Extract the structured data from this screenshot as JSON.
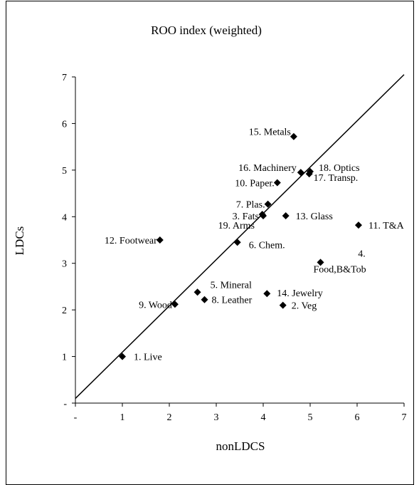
{
  "chart_data": {
    "type": "scatter",
    "title": "ROO index (weighted)",
    "xlabel": "nonLDCS",
    "ylabel": "LDCs",
    "xlim": [
      0,
      7
    ],
    "ylim": [
      0,
      7
    ],
    "x_tick_labels": [
      "-",
      "1",
      "2",
      "3",
      "4",
      "5",
      "6",
      "7"
    ],
    "y_tick_labels": [
      "-",
      "1",
      "2",
      "3",
      "4",
      "5",
      "6",
      "7"
    ],
    "grid": false,
    "legend": "none",
    "reference_line": {
      "from": [
        0,
        0.1
      ],
      "to": [
        7,
        7.05
      ]
    },
    "marker_color": "#000000",
    "points": [
      {
        "label": "1. Live",
        "x": 1.0,
        "y": 1.0
      },
      {
        "label": "2. Veg",
        "x": 4.42,
        "y": 2.1
      },
      {
        "label": "3. Fats",
        "x": 4.0,
        "y": 4.02
      },
      {
        "label": "4.\nFood,B&Tob",
        "x": 5.22,
        "y": 3.02
      },
      {
        "label": "5. Mineral",
        "x": 2.6,
        "y": 2.38
      },
      {
        "label": "6. Chem.",
        "x": 3.45,
        "y": 3.45
      },
      {
        "label": "7. Plas.",
        "x": 4.1,
        "y": 4.27
      },
      {
        "label": "8. Leather",
        "x": 2.75,
        "y": 2.22
      },
      {
        "label": "9. Wood",
        "x": 2.12,
        "y": 2.12
      },
      {
        "label": "10. Paper.",
        "x": 4.3,
        "y": 4.73
      },
      {
        "label": "11. T&A",
        "x": 6.03,
        "y": 3.82
      },
      {
        "label": "12. Footwear",
        "x": 1.8,
        "y": 3.5
      },
      {
        "label": "13. Glass",
        "x": 4.48,
        "y": 4.02
      },
      {
        "label": "14. Jewelry",
        "x": 4.08,
        "y": 2.35
      },
      {
        "label": "15. Metals",
        "x": 4.65,
        "y": 5.72
      },
      {
        "label": "16. Machinery",
        "x": 4.8,
        "y": 4.95
      },
      {
        "label": "17. Transp.",
        "x": 4.98,
        "y": 4.92
      },
      {
        "label": "18. Optics",
        "x": 5.0,
        "y": 4.97
      },
      {
        "label": "19. Arms",
        "x": 3.98,
        "y": 4.05
      }
    ]
  }
}
